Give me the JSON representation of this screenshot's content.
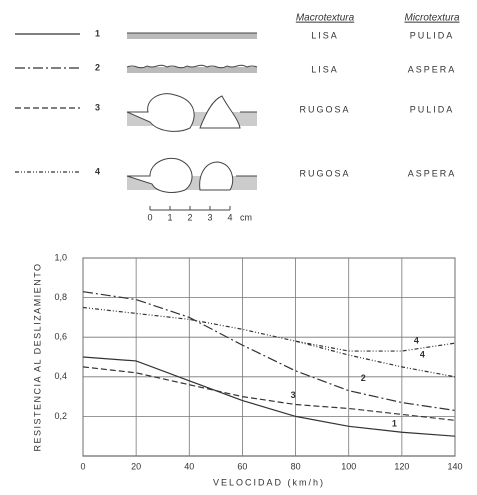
{
  "legend_table": {
    "headers": [
      "Macrotextura",
      "Microtextura"
    ],
    "rows": [
      {
        "line": "1",
        "macro": "LISA",
        "micro": "PULIDA",
        "style": "solid"
      },
      {
        "line": "2",
        "macro": "LISA",
        "micro": "ASPERA",
        "style": "dashdot"
      },
      {
        "line": "3",
        "macro": "RUGOSA",
        "micro": "PULIDA",
        "style": "dashed"
      },
      {
        "line": "4",
        "macro": "RUGOSA",
        "micro": "ASPERA",
        "style": "dotdash"
      }
    ],
    "scale": {
      "ticks": [
        "0",
        "1",
        "2",
        "3",
        "4"
      ],
      "unit": "cm"
    }
  },
  "chart_data": {
    "type": "line",
    "x_label": "VELOCIDAD (km/h)",
    "y_label": "RESISTENCIA AL DESLIZAMIENTO",
    "x": [
      0,
      20,
      40,
      60,
      80,
      100,
      120,
      140
    ],
    "series": [
      {
        "name": "4",
        "style": "dotdash",
        "color": "#333",
        "values": [
          null,
          null,
          null,
          null,
          0.58,
          0.53,
          0.53,
          0.57
        ]
      },
      {
        "name": "4",
        "style": "dotdash",
        "color": "#333",
        "values": [
          0.75,
          0.72,
          0.69,
          0.64,
          0.58,
          0.51,
          0.45,
          0.4
        ]
      },
      {
        "name": "2",
        "style": "dashdot",
        "color": "#333",
        "values": [
          0.83,
          0.79,
          0.7,
          0.56,
          0.43,
          0.33,
          0.27,
          0.23
        ]
      },
      {
        "name": "3",
        "style": "dashed",
        "color": "#333",
        "values": [
          0.45,
          0.42,
          0.36,
          0.3,
          0.26,
          0.24,
          0.21,
          0.18
        ]
      },
      {
        "name": "1",
        "style": "solid",
        "color": "#333",
        "values": [
          0.5,
          0.48,
          0.38,
          0.28,
          0.2,
          0.15,
          0.12,
          0.1
        ]
      }
    ],
    "xlim": [
      0,
      140
    ],
    "xticks": [
      0,
      20,
      40,
      60,
      80,
      100,
      120,
      140
    ],
    "ylim": [
      0,
      1.0
    ],
    "yticks": [
      {
        "value": 0.2,
        "label": "0,2"
      },
      {
        "value": 0.4,
        "label": "0,4"
      },
      {
        "value": 0.6,
        "label": "0,6"
      },
      {
        "value": 0.8,
        "label": "0,8"
      },
      {
        "value": 1.0,
        "label": "1,0"
      }
    ],
    "grid": true
  }
}
